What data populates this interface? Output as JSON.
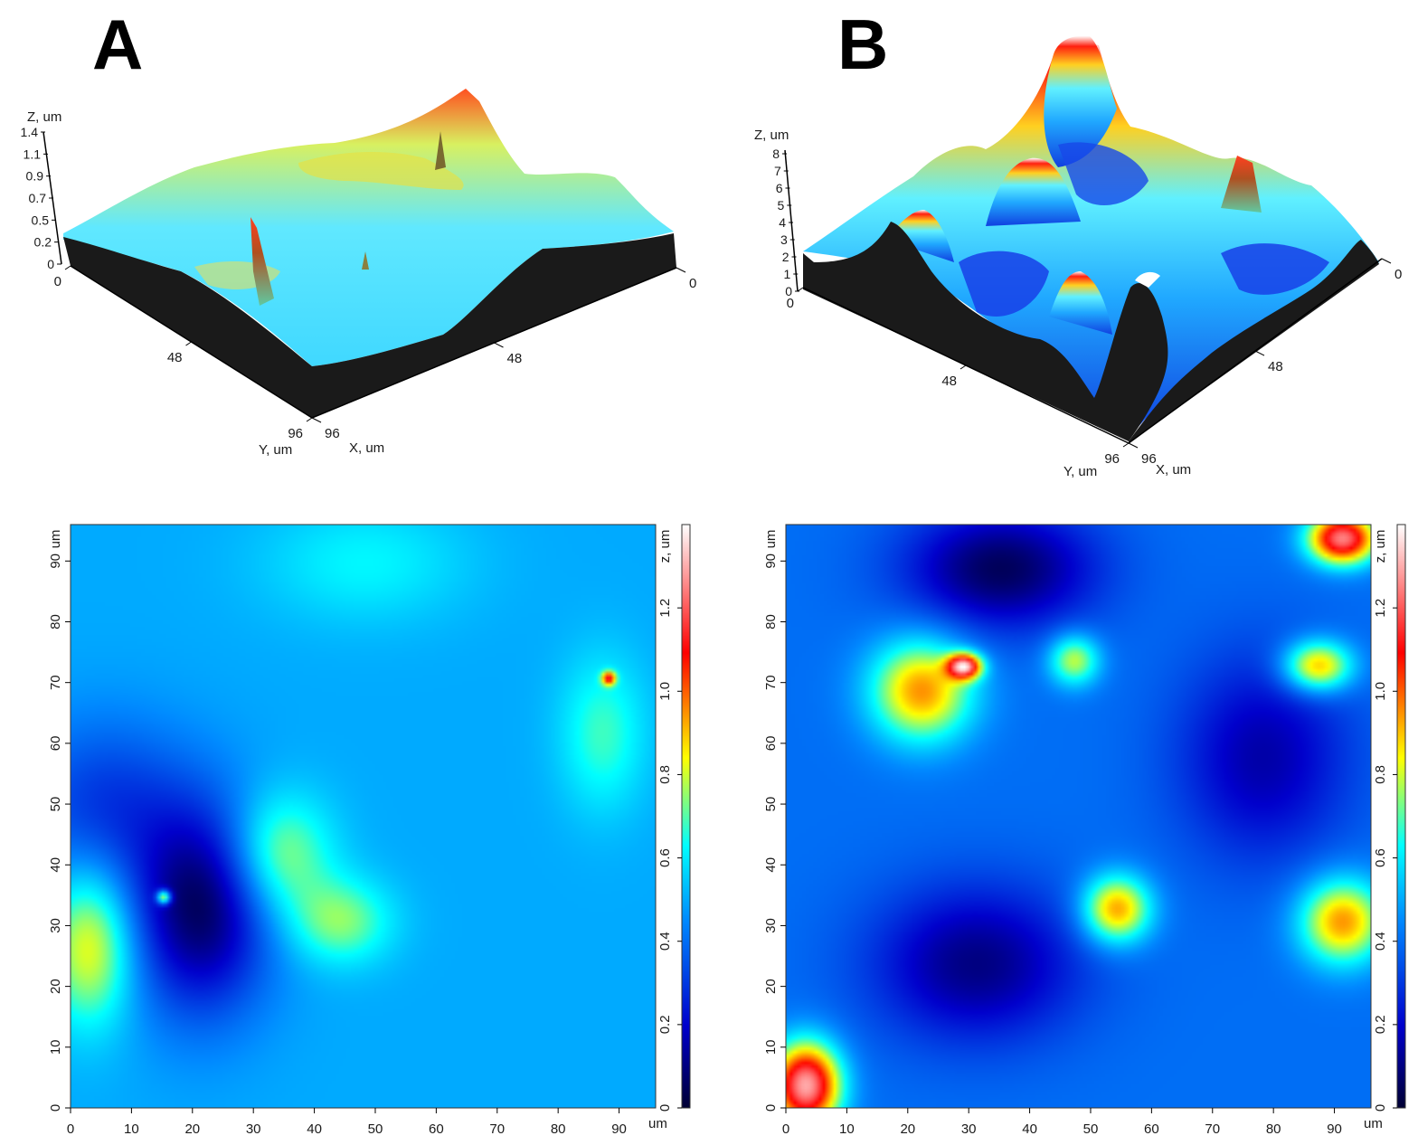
{
  "panels": [
    {
      "letter": "A",
      "surface3d": {
        "z_label": "Z, um",
        "z_ticks": [
          "1.4",
          "1.1",
          "0.9",
          "0.7",
          "0.5",
          "0.2",
          "0"
        ],
        "x_label": "X, um",
        "y_label": "Y, um",
        "x_ticks": [
          "0",
          "48",
          "96"
        ],
        "y_ticks": [
          "0",
          "48",
          "96"
        ]
      },
      "heatmap": {
        "x_ticks": [
          "0",
          "10",
          "20",
          "30",
          "40",
          "50",
          "60",
          "70",
          "80",
          "90"
        ],
        "y_ticks": [
          "0",
          "10",
          "20",
          "30",
          "40",
          "50",
          "60",
          "70",
          "80",
          "90"
        ],
        "x_unit": "um",
        "y_unit": "um",
        "colorbar_label": "z, um",
        "colorbar_ticks": [
          "0",
          "0.2",
          "0.4",
          "0.6",
          "0.8",
          "1.0",
          "1.2"
        ]
      }
    },
    {
      "letter": "B",
      "surface3d": {
        "z_label": "Z, um",
        "z_ticks": [
          "8",
          "7",
          "6",
          "5",
          "4",
          "3",
          "2",
          "1",
          "0"
        ],
        "x_label": "X, um",
        "y_label": "Y, um",
        "x_ticks": [
          "0",
          "48",
          "96"
        ],
        "y_ticks": [
          "0",
          "48",
          "96"
        ]
      },
      "heatmap": {
        "x_ticks": [
          "0",
          "10",
          "20",
          "30",
          "40",
          "50",
          "60",
          "70",
          "80",
          "90"
        ],
        "y_ticks": [
          "0",
          "10",
          "20",
          "30",
          "40",
          "50",
          "60",
          "70",
          "80",
          "90"
        ],
        "x_unit": "um",
        "y_unit": "um",
        "colorbar_label": "z, um",
        "colorbar_ticks": [
          "0",
          "0.2",
          "0.4",
          "0.6",
          "0.8",
          "1.0",
          "1.2"
        ]
      }
    }
  ],
  "chart_data": [
    {
      "type": "heatmap",
      "panel": "A",
      "xlabel": "um",
      "ylabel": "um",
      "xlim": [
        0,
        96
      ],
      "ylim": [
        0,
        96
      ],
      "colorbar_label": "z, um",
      "colorbar_range": [
        0,
        1.4
      ],
      "colormap": [
        "#000033",
        "#0000cc",
        "#0088ff",
        "#00ffff",
        "#ffff00",
        "#ff0000",
        "#ffffff"
      ],
      "features": [
        {
          "x": 3,
          "y": 27,
          "z": 0.85,
          "sx": 5,
          "sy": 9
        },
        {
          "x": 34,
          "y": 42,
          "z": 0.78,
          "sx": 6,
          "sy": 7
        },
        {
          "x": 44,
          "y": 31,
          "z": 0.74,
          "sx": 6,
          "sy": 5
        },
        {
          "x": 87,
          "y": 62,
          "z": 0.68,
          "sx": 5,
          "sy": 9
        },
        {
          "x": 48,
          "y": 90,
          "z": 0.62,
          "sx": 12,
          "sy": 7
        },
        {
          "x": 21,
          "y": 33,
          "z": 0.06,
          "sx": 8,
          "sy": 12
        },
        {
          "x": 5,
          "y": 50,
          "z": 0.3,
          "sx": 10,
          "sy": 10
        },
        {
          "x": 15,
          "y": 35,
          "z": 1.1,
          "sx": 0.8,
          "sy": 0.8
        },
        {
          "x": 88,
          "y": 71,
          "z": 1.05,
          "sx": 0.8,
          "sy": 0.8
        }
      ]
    },
    {
      "type": "heatmap",
      "panel": "B",
      "xlabel": "um",
      "ylabel": "um",
      "xlim": [
        0,
        96
      ],
      "ylim": [
        0,
        96
      ],
      "colorbar_label": "z, um",
      "colorbar_range": [
        0,
        1.4
      ],
      "colormap": [
        "#000033",
        "#0000cc",
        "#0088ff",
        "#00ffff",
        "#ffff00",
        "#ff0000",
        "#ffffff"
      ],
      "features": [
        {
          "x": 22,
          "y": 69,
          "z": 0.95,
          "sx": 6,
          "sy": 6
        },
        {
          "x": 29,
          "y": 73,
          "z": 1.2,
          "sx": 2,
          "sy": 1.5
        },
        {
          "x": 54,
          "y": 33,
          "z": 0.95,
          "sx": 4,
          "sy": 4
        },
        {
          "x": 47,
          "y": 74,
          "z": 0.8,
          "sx": 3,
          "sy": 3
        },
        {
          "x": 87,
          "y": 73,
          "z": 0.95,
          "sx": 4,
          "sy": 3
        },
        {
          "x": 91,
          "y": 94,
          "z": 1.25,
          "sx": 4,
          "sy": 3
        },
        {
          "x": 91,
          "y": 31,
          "z": 0.95,
          "sx": 5,
          "sy": 5
        },
        {
          "x": 3,
          "y": 4,
          "z": 1.3,
          "sx": 4,
          "sy": 5
        },
        {
          "x": 31,
          "y": 24,
          "z": 0.1,
          "sx": 12,
          "sy": 9
        },
        {
          "x": 35,
          "y": 89,
          "z": 0.05,
          "sx": 11,
          "sy": 7
        },
        {
          "x": 78,
          "y": 58,
          "z": 0.15,
          "sx": 10,
          "sy": 12
        }
      ]
    }
  ]
}
